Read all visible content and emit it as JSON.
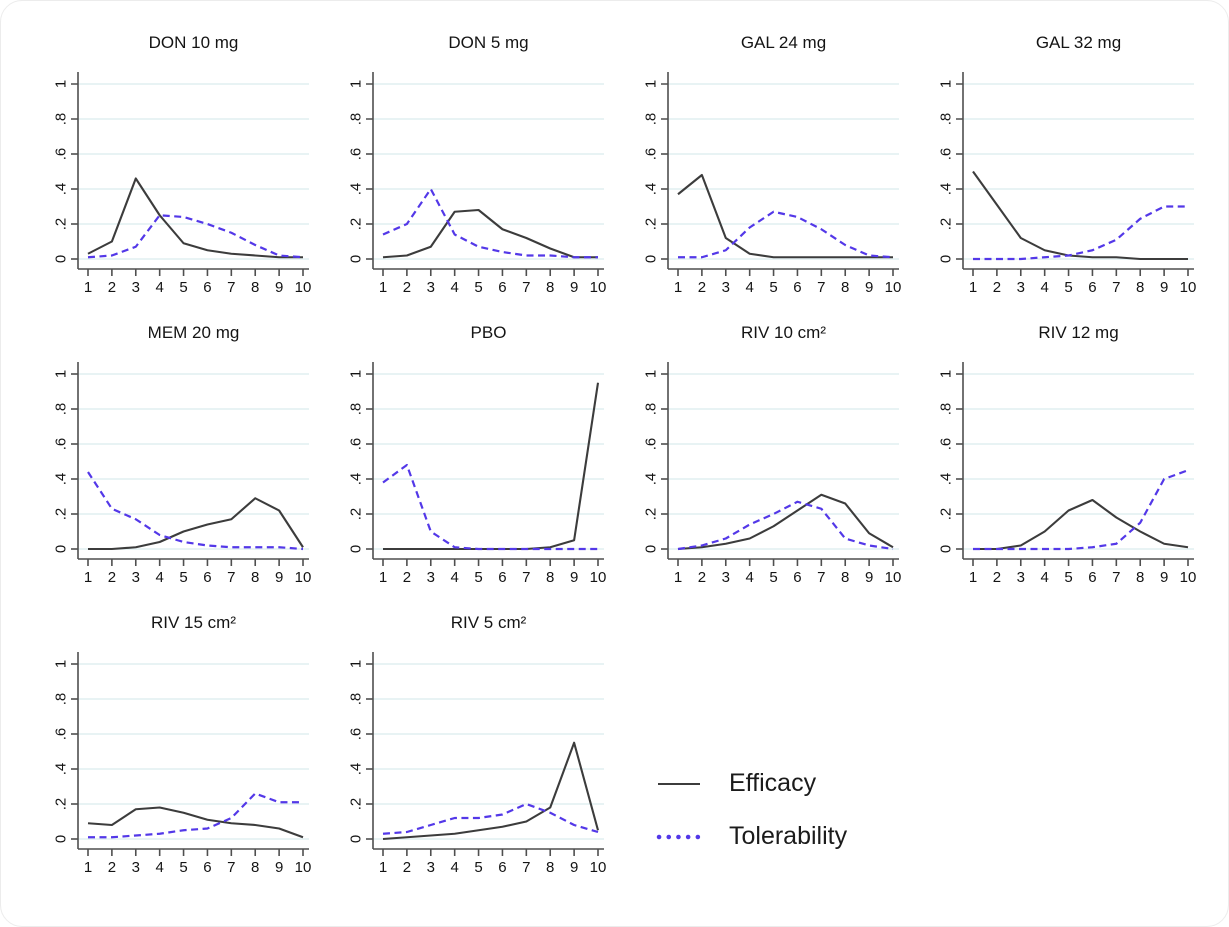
{
  "figure": {
    "background": "#ffffff"
  },
  "chart_data": {
    "type": "line",
    "layout": "small-multiples-grid-4x3",
    "x": [
      1,
      2,
      3,
      4,
      5,
      6,
      7,
      8,
      9,
      10
    ],
    "axes": {
      "xlim": [
        1,
        10
      ],
      "ylim": [
        0,
        1
      ],
      "xticks": [
        1,
        2,
        3,
        4,
        5,
        6,
        7,
        8,
        9,
        10
      ],
      "yticks": [
        0,
        0.2,
        0.4,
        0.6,
        0.8,
        1
      ],
      "ytick_labels": [
        "0",
        ".2",
        ".4",
        ".6",
        ".8",
        "1"
      ],
      "ytick_label_angle": -90,
      "grid": true
    },
    "series": [
      {
        "name": "Efficacy",
        "color": "#3c3c3c",
        "line_style": "solid"
      },
      {
        "name": "Tolerability",
        "color": "#5338e8",
        "line_style": "dashed"
      }
    ],
    "style": {
      "gridline_color": "#e1eff1",
      "axis_color": "#4f4f4f",
      "tick_label_color": "#141414",
      "title_color": "#141414"
    },
    "panels": [
      {
        "title": "DON 10 mg",
        "efficacy": [
          0.03,
          0.1,
          0.46,
          0.25,
          0.09,
          0.05,
          0.03,
          0.02,
          0.01,
          0.01
        ],
        "tolerability": [
          0.01,
          0.02,
          0.07,
          0.25,
          0.24,
          0.2,
          0.15,
          0.08,
          0.02,
          0.01
        ]
      },
      {
        "title": "DON 5 mg",
        "efficacy": [
          0.01,
          0.02,
          0.07,
          0.27,
          0.28,
          0.17,
          0.12,
          0.06,
          0.01,
          0.01
        ],
        "tolerability": [
          0.14,
          0.2,
          0.4,
          0.14,
          0.07,
          0.04,
          0.02,
          0.02,
          0.01,
          0.01
        ]
      },
      {
        "title": "GAL 24 mg",
        "efficacy": [
          0.37,
          0.48,
          0.12,
          0.03,
          0.01,
          0.01,
          0.01,
          0.01,
          0.01,
          0.01
        ],
        "tolerability": [
          0.01,
          0.01,
          0.05,
          0.18,
          0.27,
          0.24,
          0.17,
          0.08,
          0.02,
          0.01
        ]
      },
      {
        "title": "GAL 32 mg",
        "efficacy": [
          0.5,
          0.31,
          0.12,
          0.05,
          0.02,
          0.01,
          0.01,
          0.0,
          0.0,
          0.0
        ],
        "tolerability": [
          0.0,
          0.0,
          0.0,
          0.01,
          0.02,
          0.05,
          0.11,
          0.23,
          0.3,
          0.3
        ]
      },
      {
        "title": "MEM 20 mg",
        "efficacy": [
          0.0,
          0.0,
          0.01,
          0.04,
          0.1,
          0.14,
          0.17,
          0.29,
          0.22,
          0.01
        ],
        "tolerability": [
          0.44,
          0.23,
          0.17,
          0.08,
          0.04,
          0.02,
          0.01,
          0.01,
          0.01,
          0.0
        ]
      },
      {
        "title": "PBO",
        "efficacy": [
          0.0,
          0.0,
          0.0,
          0.0,
          0.0,
          0.0,
          0.0,
          0.01,
          0.05,
          0.95
        ],
        "tolerability": [
          0.38,
          0.48,
          0.1,
          0.01,
          0.0,
          0.0,
          0.0,
          0.0,
          0.0,
          0.0
        ]
      },
      {
        "title": "RIV 10 cm²",
        "efficacy": [
          0.0,
          0.01,
          0.03,
          0.06,
          0.13,
          0.22,
          0.31,
          0.26,
          0.09,
          0.01
        ],
        "tolerability": [
          0.0,
          0.02,
          0.06,
          0.14,
          0.2,
          0.27,
          0.23,
          0.06,
          0.02,
          0.0
        ]
      },
      {
        "title": "RIV 12 mg",
        "efficacy": [
          0.0,
          0.0,
          0.02,
          0.1,
          0.22,
          0.28,
          0.18,
          0.1,
          0.03,
          0.01
        ],
        "tolerability": [
          0.0,
          0.0,
          0.0,
          0.0,
          0.0,
          0.01,
          0.03,
          0.15,
          0.4,
          0.45
        ]
      },
      {
        "title": "RIV 15 cm²",
        "efficacy": [
          0.09,
          0.08,
          0.17,
          0.18,
          0.15,
          0.11,
          0.09,
          0.08,
          0.06,
          0.01
        ],
        "tolerability": [
          0.01,
          0.01,
          0.02,
          0.03,
          0.05,
          0.06,
          0.12,
          0.26,
          0.21,
          0.21
        ]
      },
      {
        "title": "RIV 5 cm²",
        "efficacy": [
          0.0,
          0.01,
          0.02,
          0.03,
          0.05,
          0.07,
          0.1,
          0.18,
          0.55,
          0.05
        ],
        "tolerability": [
          0.03,
          0.04,
          0.08,
          0.12,
          0.12,
          0.14,
          0.2,
          0.15,
          0.08,
          0.04
        ]
      }
    ],
    "legend": {
      "position": "bottom-right",
      "items": [
        {
          "label": "Efficacy"
        },
        {
          "label": "Tolerability"
        }
      ]
    }
  }
}
